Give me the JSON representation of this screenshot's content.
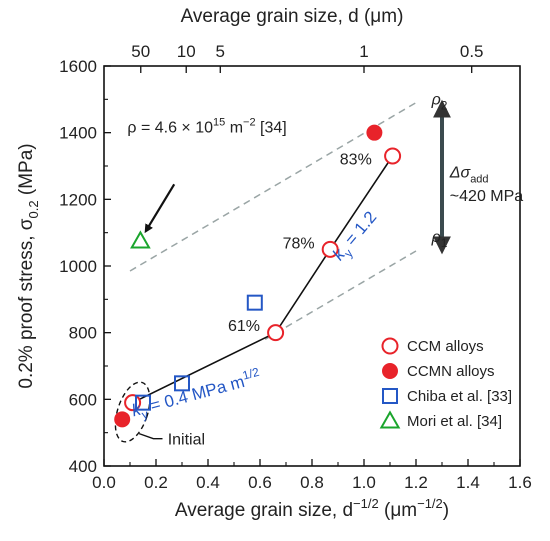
{
  "chart_data": {
    "type": "scatter",
    "xlabel": "Average grain size, d",
    "xlabel_sup": "−1/2",
    "xlabel_unit": "(μm",
    "xlabel_unit_sup": "−1/2",
    "xlabel_close": ")",
    "top_xlabel": "Average grain size, d (μm)",
    "ylabel": "0.2% proof stress, σ",
    "ylabel_sub": "0.2",
    "ylabel_unit": "(MPa)",
    "xlim": [
      0,
      1.6
    ],
    "ylim": [
      400,
      1600
    ],
    "x_ticks": [
      "0.0",
      "0.2",
      "0.4",
      "0.6",
      "0.8",
      "1.0",
      "1.2",
      "1.4",
      "1.6"
    ],
    "y_ticks": [
      "400",
      "600",
      "800",
      "1000",
      "1200",
      "1400",
      "1600"
    ],
    "top_ticks": [
      {
        "d": 50,
        "label": "50"
      },
      {
        "d": 10,
        "label": "10"
      },
      {
        "d": 5,
        "label": "5"
      },
      {
        "d": 1,
        "label": "1"
      },
      {
        "d": 0.5,
        "label": "0.5"
      }
    ],
    "series": [
      {
        "name": "CCM alloys",
        "marker": "circle-open",
        "color": "#e8232a",
        "x": [
          0.11,
          0.66,
          0.87,
          1.11
        ],
        "y": [
          590,
          800,
          1050,
          1330
        ]
      },
      {
        "name": "CCMN alloys",
        "marker": "circle-filled",
        "color": "#e8232a",
        "x": [
          0.07,
          1.04
        ],
        "y": [
          540,
          1400
        ]
      },
      {
        "name": "Chiba et al. [33]",
        "marker": "square-open",
        "color": "#2457c5",
        "x": [
          0.15,
          0.3,
          0.58
        ],
        "y": [
          590,
          648,
          890
        ]
      },
      {
        "name": "Mori et al. [34]",
        "marker": "triangle-open",
        "color": "#1aa52c",
        "x": [
          0.14
        ],
        "y": [
          1075
        ]
      }
    ],
    "fit_line": {
      "x": [
        0.11,
        0.66,
        0.87,
        1.11
      ],
      "y": [
        590,
        800,
        1050,
        1330
      ]
    },
    "dashed_lines": [
      {
        "x": [
          0.1,
          1.2
        ],
        "y": [
          985,
          1490
        ]
      },
      {
        "x": [
          0.62,
          1.2
        ],
        "y": [
          780,
          1045
        ]
      }
    ],
    "percent_labels": [
      {
        "text": "61%",
        "x": 0.6,
        "y": 820
      },
      {
        "text": "78%",
        "x": 0.81,
        "y": 1068
      },
      {
        "text": "83%",
        "x": 1.03,
        "y": 1320
      }
    ],
    "slope_labels": [
      {
        "prefix": "k",
        "sub": "y",
        "suffix": " = 0.4 MPa m",
        "sup": "1/2",
        "x": 0.36,
        "y": 600,
        "angle": -15
      },
      {
        "prefix": "k",
        "sub": "y",
        "suffix": " = 1.2",
        "sup": "",
        "x": 0.98,
        "y": 1080,
        "angle": -50
      }
    ],
    "rho_annotation": {
      "pre": "ρ = 4.6 × 10",
      "sup": "15",
      "post": " m",
      "sup2": "−2",
      "tail": " [34]"
    },
    "rho2": {
      "base": "ρ",
      "sub": "2"
    },
    "rho1": {
      "base": "ρ",
      "sub": "1"
    },
    "delta_annotation": {
      "base": "Δσ",
      "sub": "add",
      "value": "~420 MPa"
    },
    "initial_label": "Initial",
    "legend_position": "bottom-right",
    "grid": false
  }
}
